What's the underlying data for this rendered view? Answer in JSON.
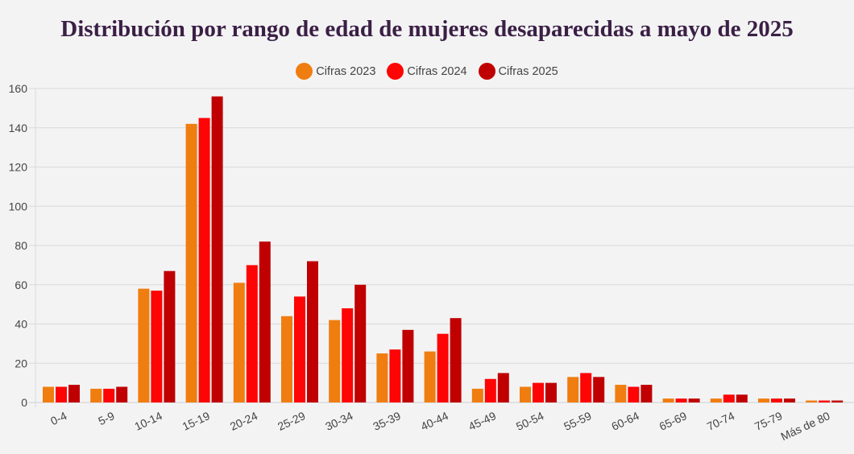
{
  "chart_data": {
    "type": "bar",
    "title": "Distribución por rango de edad de mujeres desaparecidas a mayo de 2025",
    "xlabel": "",
    "ylabel": "",
    "ylim": [
      0,
      160
    ],
    "yticks": [
      0,
      20,
      40,
      60,
      80,
      100,
      120,
      140,
      160
    ],
    "grid": true,
    "legend_position": "top-center",
    "categories": [
      "0-4",
      "5-9",
      "10-14",
      "15-19",
      "20-24",
      "25-29",
      "30-34",
      "35-39",
      "40-44",
      "45-49",
      "50-54",
      "55-59",
      "60-64",
      "65-69",
      "70-74",
      "75-79",
      "Más de 80"
    ],
    "series": [
      {
        "name": "Cifras 2023",
        "color": "#f07d0f",
        "values": [
          8,
          7,
          58,
          142,
          61,
          44,
          42,
          25,
          26,
          7,
          8,
          13,
          9,
          2,
          2,
          2,
          1
        ]
      },
      {
        "name": "Cifras 2024",
        "color": "#fe0404",
        "values": [
          8,
          7,
          57,
          145,
          70,
          54,
          48,
          27,
          35,
          12,
          10,
          15,
          8,
          2,
          4,
          2,
          1
        ]
      },
      {
        "name": "Cifras 2025",
        "color": "#c00000",
        "values": [
          9,
          8,
          67,
          156,
          82,
          72,
          60,
          37,
          43,
          15,
          10,
          13,
          9,
          2,
          4,
          2,
          1
        ]
      }
    ]
  }
}
